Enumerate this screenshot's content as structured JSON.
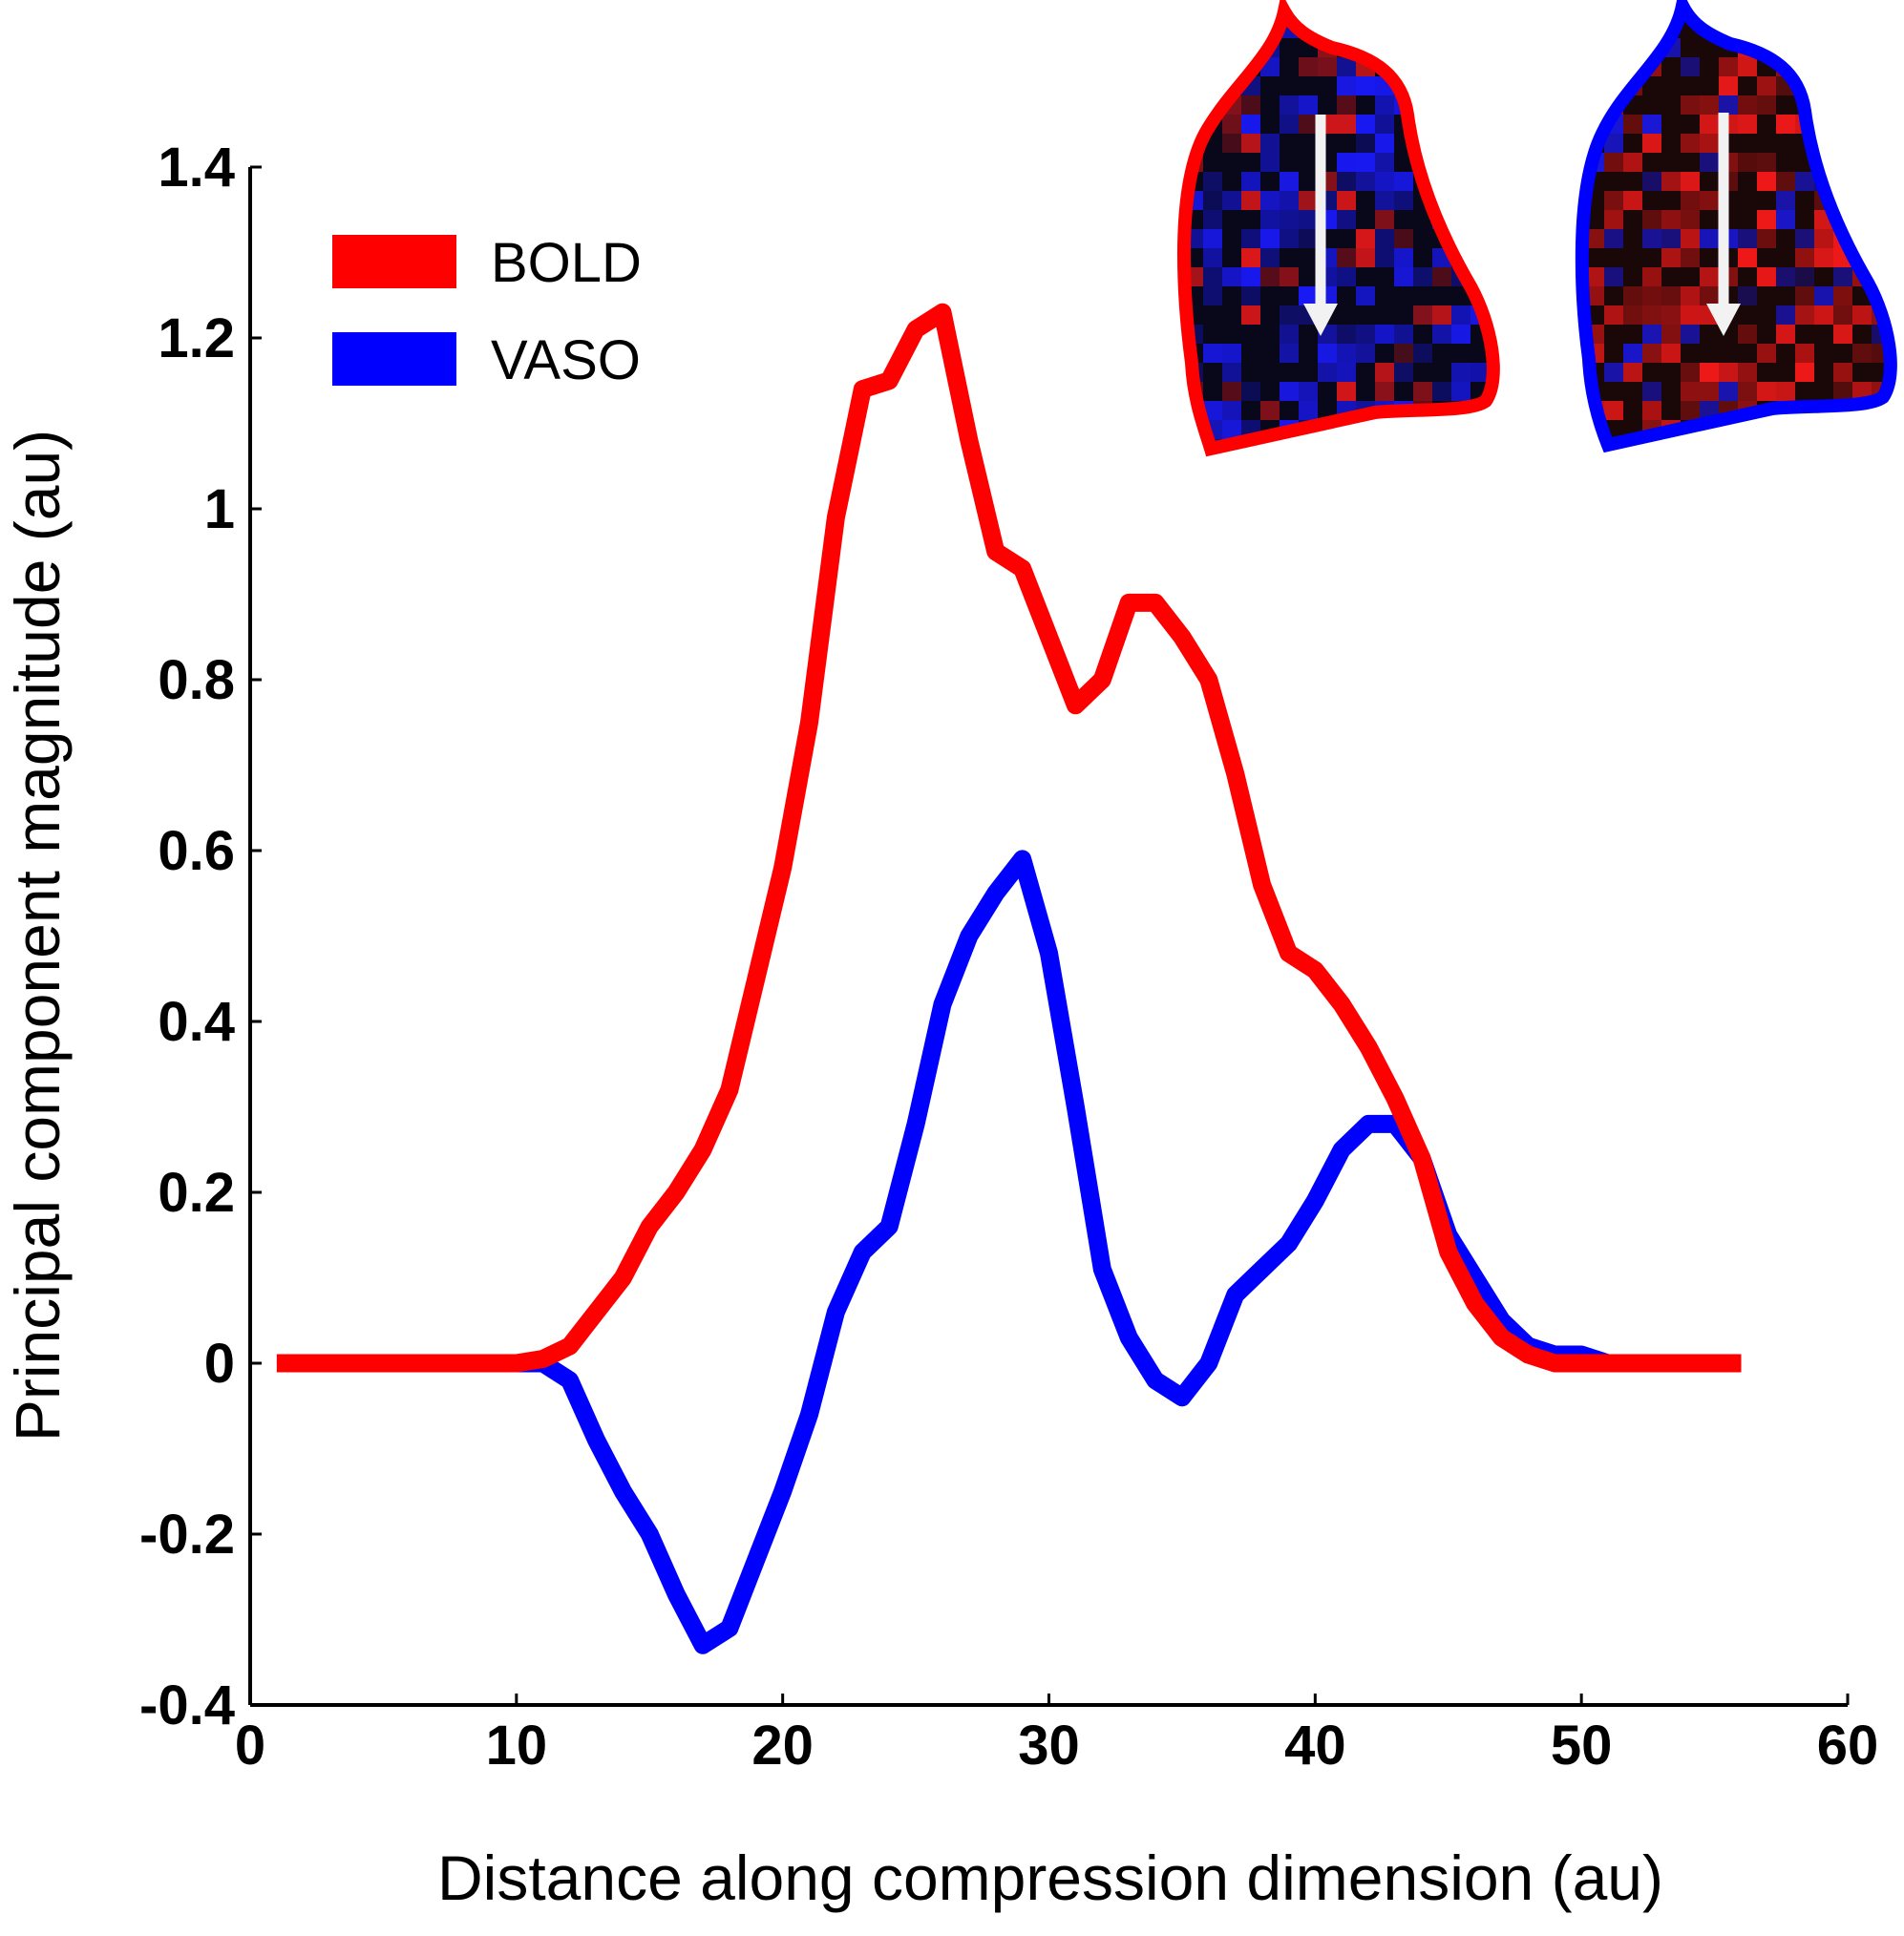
{
  "chart_data": {
    "type": "line",
    "title": "",
    "xlabel": "Distance along compression dimension (au)",
    "ylabel": "Principal component magnitude (au)",
    "xlim": [
      0,
      60
    ],
    "ylim": [
      -0.4,
      1.4
    ],
    "xticks": [
      0,
      10,
      20,
      30,
      40,
      50,
      60
    ],
    "xtick_labels": [
      "0",
      "10",
      "20",
      "30",
      "40",
      "50",
      "60"
    ],
    "yticks": [
      -0.4,
      -0.2,
      0,
      0.2,
      0.4,
      0.6,
      0.8,
      1.0,
      1.2,
      1.4
    ],
    "ytick_labels": [
      "-0.4",
      "-0.2",
      "0",
      "0.2",
      "0.4",
      "0.6",
      "0.8",
      "1",
      "1.2",
      "1.4"
    ],
    "legend_position": "top-left",
    "grid": false,
    "series": [
      {
        "name": "BOLD",
        "color": "#ff0000",
        "x": [
          1,
          2,
          3,
          4,
          5,
          6,
          7,
          8,
          9,
          10,
          11,
          12,
          13,
          14,
          15,
          16,
          17,
          18,
          19,
          20,
          21,
          22,
          23,
          24,
          25,
          26,
          27,
          28,
          29,
          30,
          31,
          32,
          33,
          34,
          35,
          36,
          37,
          38,
          39,
          40,
          41,
          42,
          43,
          44,
          45,
          46,
          47,
          48,
          49,
          50,
          51,
          52,
          53,
          54,
          55,
          56
        ],
        "y": [
          0,
          0,
          0,
          0,
          0,
          0,
          0,
          0,
          0,
          0,
          0.005,
          0.02,
          0.06,
          0.1,
          0.16,
          0.2,
          0.25,
          0.32,
          0.45,
          0.58,
          0.75,
          0.99,
          1.14,
          1.15,
          1.21,
          1.23,
          1.08,
          0.95,
          0.93,
          0.85,
          0.77,
          0.8,
          0.89,
          0.89,
          0.85,
          0.8,
          0.69,
          0.56,
          0.48,
          0.46,
          0.42,
          0.37,
          0.31,
          0.24,
          0.13,
          0.07,
          0.03,
          0.01,
          0,
          0,
          0,
          0,
          0,
          0,
          0,
          0
        ]
      },
      {
        "name": "VASO",
        "color": "#0000ff",
        "x": [
          1,
          2,
          3,
          4,
          5,
          6,
          7,
          8,
          9,
          10,
          11,
          12,
          13,
          14,
          15,
          16,
          17,
          18,
          19,
          20,
          21,
          22,
          23,
          24,
          25,
          26,
          27,
          28,
          29,
          30,
          31,
          32,
          33,
          34,
          35,
          36,
          37,
          38,
          39,
          40,
          41,
          42,
          43,
          44,
          45,
          46,
          47,
          48,
          49,
          50,
          51,
          52,
          53,
          54,
          55,
          56
        ],
        "y": [
          0,
          0,
          0,
          0,
          0,
          0,
          0,
          0,
          0,
          0,
          0,
          -0.02,
          -0.09,
          -0.15,
          -0.2,
          -0.27,
          -0.33,
          -0.31,
          -0.23,
          -0.15,
          -0.06,
          0.06,
          0.13,
          0.16,
          0.28,
          0.42,
          0.5,
          0.55,
          0.59,
          0.48,
          0.3,
          0.11,
          0.03,
          -0.02,
          -0.04,
          0,
          0.08,
          0.11,
          0.14,
          0.19,
          0.25,
          0.28,
          0.28,
          0.24,
          0.15,
          0.1,
          0.05,
          0.02,
          0.01,
          0.01,
          0,
          0,
          0,
          0,
          0,
          0
        ]
      }
    ]
  },
  "insets": [
    {
      "name": "BOLD",
      "border_color": "#ff0000",
      "cell_color": "#ff1a1a"
    },
    {
      "name": "VASO",
      "border_color": "#0000ff",
      "cell_color": "#1a1aff"
    }
  ]
}
